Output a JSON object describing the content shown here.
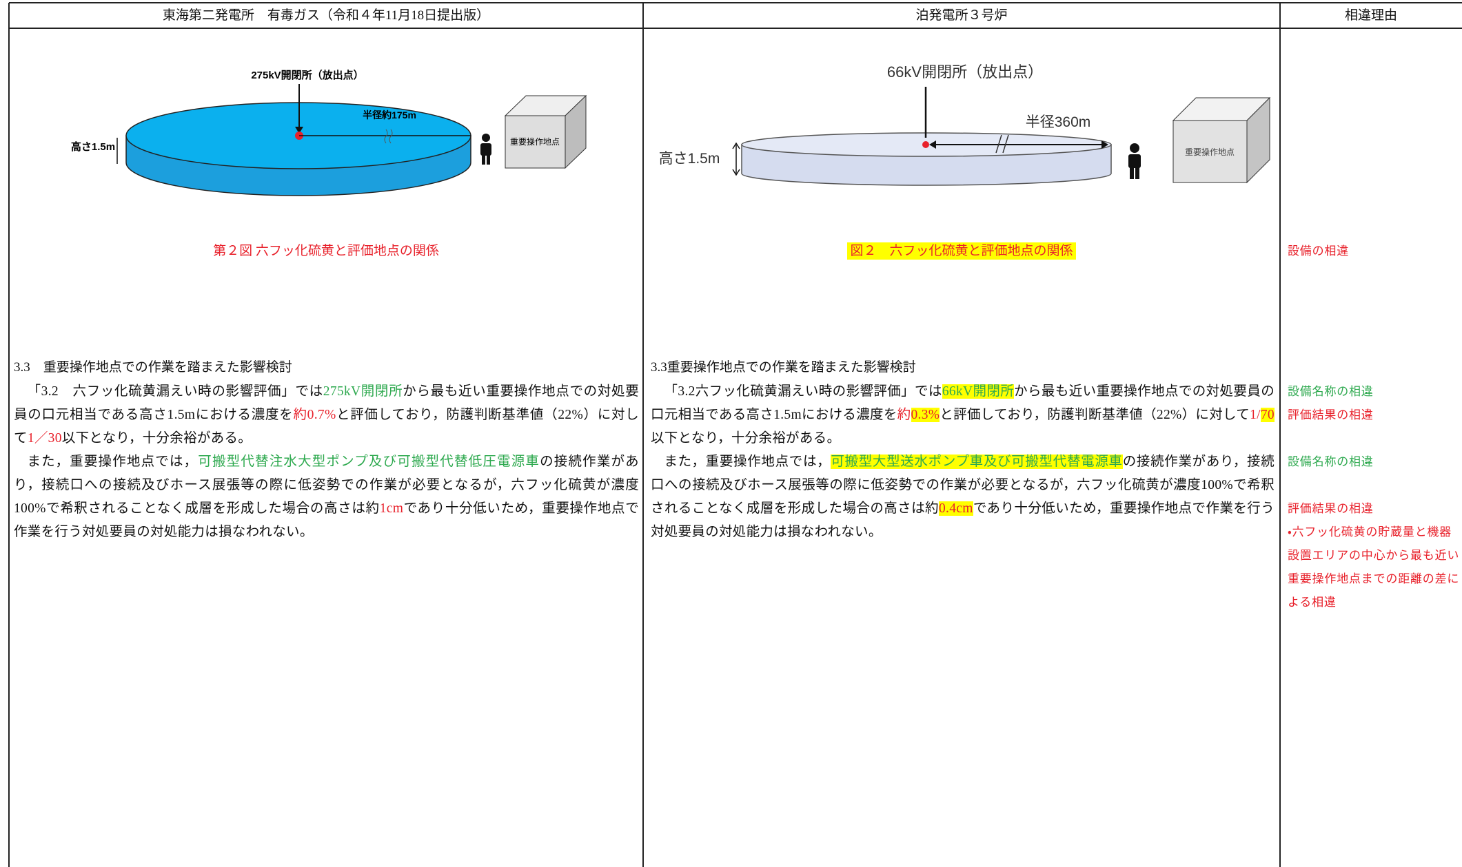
{
  "columns": [
    {
      "header": "東海第二発電所　有毒ガス（令和４年11月18日提出版）",
      "figure": {
        "source_label": "275kV開閉所（放出点）",
        "radius_label": "半径約175m",
        "height_label": "高さ1.5m",
        "point_label": "重要操作地点"
      },
      "caption": "第２図 六フッ化硫黄と評価地点の関係",
      "heading": "3.3　重要操作地点での作業を踏まえた影響検討",
      "paragraphs": [
        [
          "「3.2　六フッ化硫黄漏えい時の影響評価」では",
          "275kV開閉所",
          "から最も近い重要操作地点での対処要員の口元相当である高さ1.5mにおける濃度を",
          "約0.7%",
          "と評価しており，防護判断基準値（22%）に対して",
          "1／30",
          "以下となり，十分余裕がある。"
        ],
        [
          "また，重要操作地点では，",
          "可搬型代替注水大型ポンプ及び可搬型代替低圧電源車",
          "の接続作業があり，接続口への接続及びホース展張等の際に低姿勢での作業が必要となるが，六フッ化硫黄が濃度100%で希釈されることなく成層を形成した場合の高さは約",
          "1cm",
          "であり十分低いため，重要操作地点で作業を行う対処要員の対処能力は損なわれない。"
        ]
      ]
    },
    {
      "header": "泊発電所３号炉",
      "figure": {
        "source_label": "66kV開閉所（放出点）",
        "radius_label": "半径360m",
        "height_label": "高さ1.5m",
        "point_label": "重要操作地点"
      },
      "caption": "図２　六フッ化硫黄と評価地点の関係",
      "heading": "3.3重要操作地点での作業を踏まえた影響検討",
      "paragraphs": [
        [
          "「3.2六フッ化硫黄漏えい時の影響評価」では",
          "66kV開閉所",
          "から最も近い重要操作地点での対処要員の口元相当である高さ1.5mにおける濃度を",
          "約",
          "0.3%",
          "と評価しており，防護判断基準値（22%）に対して",
          "1/",
          "70",
          "以下となり，十分余裕がある。"
        ],
        [
          "また，重要操作地点では，",
          "可搬型大型送水ポンプ車及び可搬型代替電源車",
          "の接続作業があり，接続口への接続及びホース展張等の際に低姿勢での作業が必要となるが，六フッ化硫黄が濃度100%で希釈されることなく成層を形成した場合の高さは約",
          "0.4cm",
          "であり十分低いため，重要操作地点で作業を行う対処要員の対処能力は損なわれない。"
        ]
      ]
    }
  ],
  "differences": {
    "header": "相違理由",
    "notes": [
      "設備の相違",
      "設備名称の相違",
      "評価結果の相違",
      "設備名称の相違",
      "評価結果の相違",
      "・六フッ化硫黄の貯蔵量と機器設置エリアの中心から最も近い重要操作地点までの距離の差による相違"
    ]
  }
}
